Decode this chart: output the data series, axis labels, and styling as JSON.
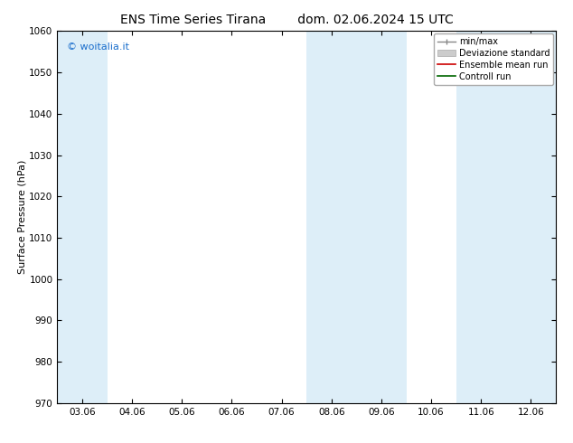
{
  "title_left": "ENS Time Series Tirana",
  "title_right": "dom. 02.06.2024 15 UTC",
  "ylabel": "Surface Pressure (hPa)",
  "ylim": [
    970,
    1060
  ],
  "yticks": [
    970,
    980,
    990,
    1000,
    1010,
    1020,
    1030,
    1040,
    1050,
    1060
  ],
  "xtick_labels": [
    "03.06",
    "04.06",
    "05.06",
    "06.06",
    "07.06",
    "08.06",
    "09.06",
    "10.06",
    "11.06",
    "12.06"
  ],
  "xtick_positions": [
    0,
    1,
    2,
    3,
    4,
    5,
    6,
    7,
    8,
    9
  ],
  "xlim": [
    -0.5,
    9.5
  ],
  "watermark": "© woitalia.it",
  "watermark_color": "#1a6ecc",
  "shaded_regions": [
    {
      "xmin": -0.5,
      "xmax": 0.5,
      "color": "#ddeef8"
    },
    {
      "xmin": 4.5,
      "xmax": 6.5,
      "color": "#ddeef8"
    },
    {
      "xmin": 7.5,
      "xmax": 9.5,
      "color": "#ddeef8"
    }
  ],
  "bg_color": "#ffffff",
  "spine_color": "#000000",
  "title_fontsize": 10,
  "axis_label_fontsize": 8,
  "tick_fontsize": 7.5,
  "legend_fontsize": 7
}
